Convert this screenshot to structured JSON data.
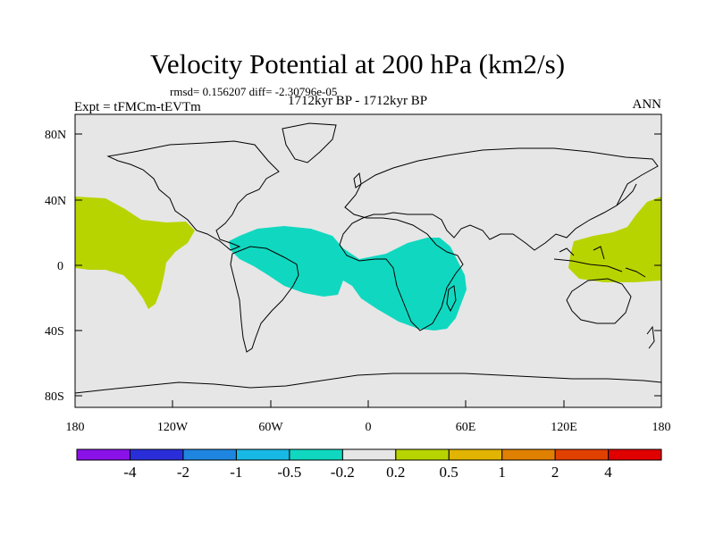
{
  "title": "Velocity Potential at 200 hPa (km2/s)",
  "stats": "rmsd= 0.156207 diff= -2.30796e-05",
  "experiment": "Expt = tFMCm-tEVTm",
  "period": "1712kyr BP - 1712kyr BP",
  "season": "ANN",
  "map": {
    "lat_ticks": [
      "80N",
      "40N",
      "0",
      "40S",
      "80S"
    ],
    "lon_ticks": [
      "180",
      "120W",
      "60W",
      "0",
      "60E",
      "120E",
      "180"
    ],
    "colors": {
      "ocean": "#e6e6e6",
      "coast": "#000000",
      "positive_region": "#b8d400",
      "negative_region": "#10d8c0"
    },
    "shaded_regions": [
      {
        "name": "eastern-pacific-positive",
        "value_class": "0.2 to 0.5"
      },
      {
        "name": "atlantic-africa-negative",
        "value_class": "-0.5 to -0.2"
      },
      {
        "name": "west-pacific-positive",
        "value_class": "0.2 to 0.5"
      }
    ]
  },
  "colorbar": {
    "labels": [
      "-4",
      "-2",
      "-1",
      "-0.5",
      "-0.2",
      "0.2",
      "0.5",
      "1",
      "2",
      "4"
    ],
    "colors": [
      "#8a12e8",
      "#2a2ed8",
      "#1e86e0",
      "#18b8e4",
      "#10d8c0",
      "#e6e6e6",
      "#b8d400",
      "#e0b400",
      "#e08000",
      "#e04000",
      "#e00000"
    ]
  }
}
